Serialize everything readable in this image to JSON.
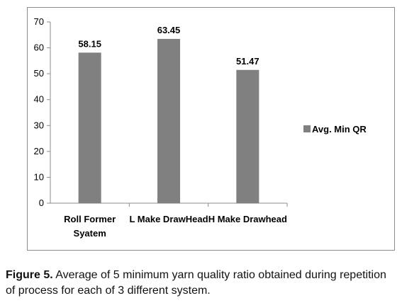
{
  "chart_data": {
    "type": "bar",
    "categories": [
      "Roll Former\nSyatem",
      "L Make DrawHead",
      "H Make Drawhead"
    ],
    "series": [
      {
        "name": "Avg. Min QR",
        "values": [
          58.15,
          63.45,
          51.47
        ],
        "value_labels": [
          "58.15",
          "63.45",
          "51.47"
        ]
      }
    ],
    "ylim": [
      0,
      70
    ],
    "yticks": [
      0,
      10,
      20,
      30,
      40,
      50,
      60,
      70
    ],
    "grid": false,
    "legend": "right",
    "bar_color": "#808080"
  },
  "caption": {
    "figure_number": "Figure 5.",
    "text": " Average of 5 minimum yarn quality ratio obtained during repetition of process for each of 3 different system."
  }
}
